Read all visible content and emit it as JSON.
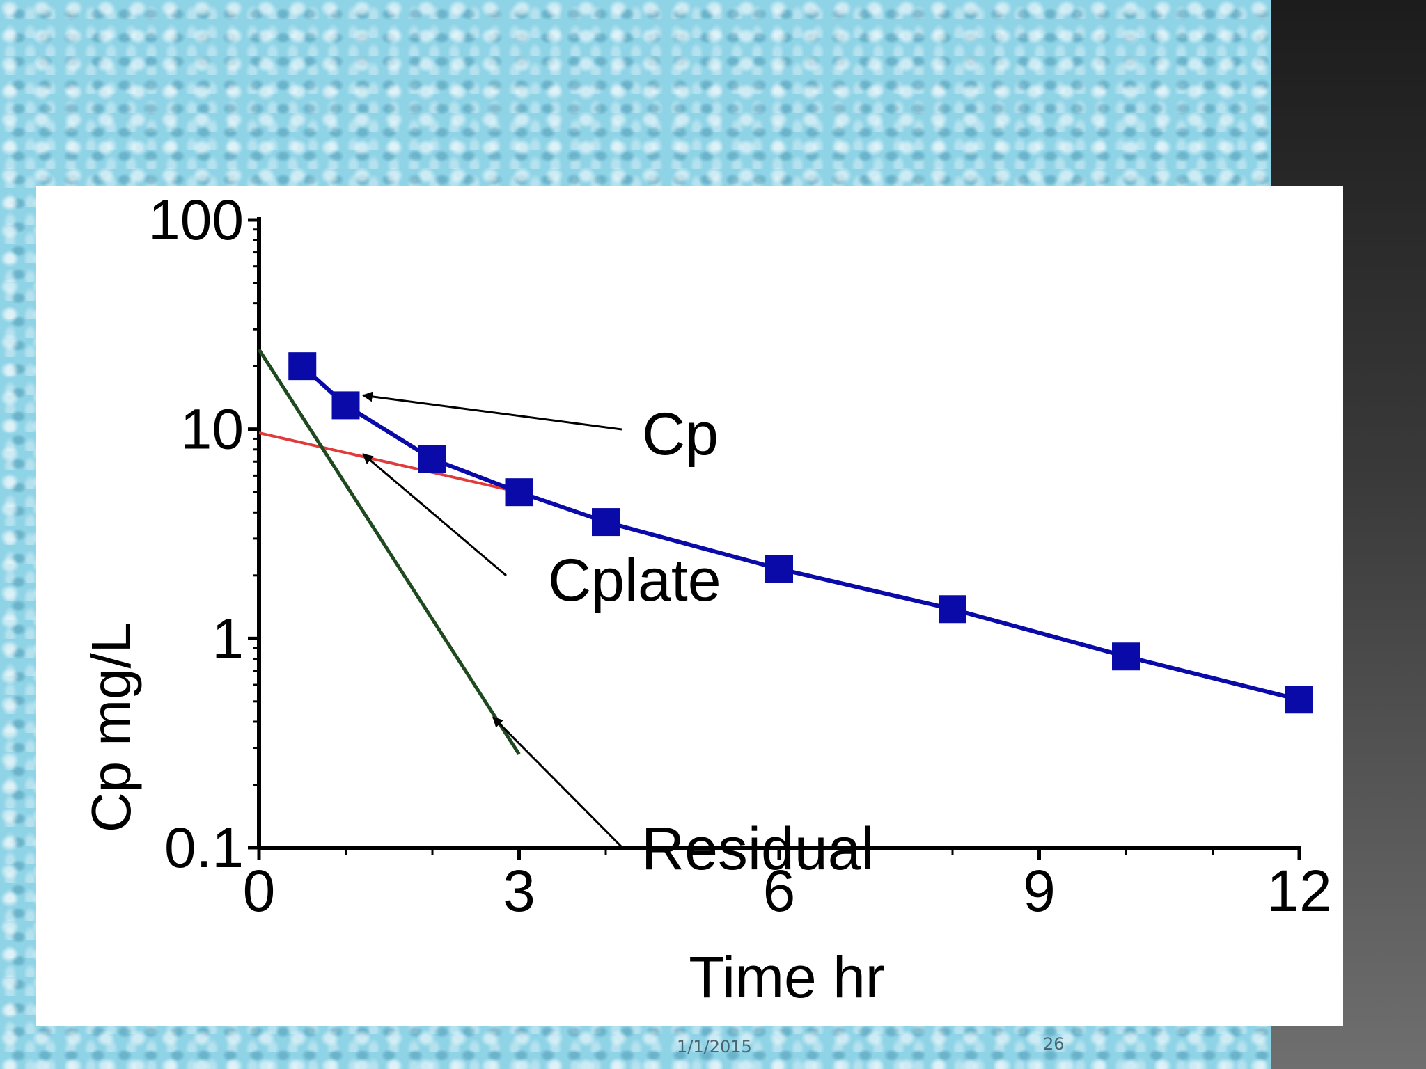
{
  "footer": {
    "date": "1/1/2015",
    "page_number": "26"
  },
  "colors": {
    "cp_series": "#0a0aa8",
    "cplate_series": "#e03a3a",
    "residual_series": "#1f4a1f",
    "axis": "#000000",
    "background": "#8fd3e6",
    "side_panel": "#2b2b2b"
  },
  "chart_data": {
    "type": "line",
    "title": "",
    "xlabel": "Time hr",
    "ylabel": "Cp mg/L",
    "xlim": [
      0,
      12
    ],
    "ylim": [
      0.1,
      100
    ],
    "yscale": "log",
    "x_ticks": [
      "0",
      "3",
      "6",
      "9",
      "12"
    ],
    "y_ticks": [
      "0.1",
      "1",
      "10",
      "100"
    ],
    "grid": false,
    "legend": "none",
    "series": [
      {
        "name": "Cp",
        "marker": "square",
        "x": [
          0.5,
          1,
          2,
          3,
          4,
          6,
          8,
          10,
          12
        ],
        "y": [
          20,
          13,
          7.2,
          5.0,
          3.6,
          2.15,
          1.38,
          0.82,
          0.51
        ]
      },
      {
        "name": "Cplate",
        "marker": "none",
        "x": [
          0,
          3
        ],
        "y": [
          9.6,
          5.0
        ]
      },
      {
        "name": "Residual",
        "marker": "none",
        "x": [
          0,
          3
        ],
        "y": [
          24,
          0.28
        ]
      }
    ],
    "annotations": [
      {
        "text": "Cp",
        "points_to": {
          "x": 1.2,
          "y": 14.5
        }
      },
      {
        "text": "Cplate",
        "points_to": {
          "x": 1.2,
          "y": 7.6
        }
      },
      {
        "text": "Residual",
        "points_to": {
          "x": 2.7,
          "y": 0.42
        }
      }
    ]
  }
}
